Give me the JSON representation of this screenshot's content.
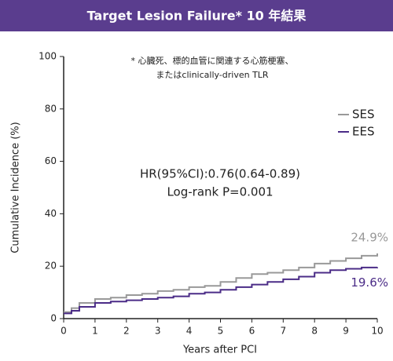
{
  "chart_data": {
    "type": "line",
    "step": true,
    "title": "Target Lesion Failure* 10 年結果",
    "footnote": [
      "* 心臓死、標的血管に関連する心筋梗塞、",
      "またはclinically-driven TLR"
    ],
    "annotations": [
      "HR(95%CI):0.76(0.64-0.89)",
      "Log-rank P=0.001"
    ],
    "x_label": "Years after PCI",
    "y_label": "Cumulative Incidence (%)",
    "x": [
      0,
      0.25,
      0.5,
      1,
      1.5,
      2,
      2.5,
      3,
      3.5,
      4,
      4.5,
      5,
      5.5,
      6,
      6.5,
      7,
      7.5,
      8,
      8.5,
      9,
      9.5,
      10
    ],
    "series": [
      {
        "name": "SES",
        "color": "#999999",
        "values": [
          2.5,
          4,
          6,
          7.5,
          8,
          9,
          9.5,
          10.5,
          11,
          12,
          12.5,
          14,
          15.5,
          17,
          17.5,
          18.5,
          19.5,
          21,
          22,
          23,
          24,
          24.9
        ],
        "value_labels": [
          null,
          null,
          null,
          null,
          null,
          null,
          null,
          null,
          null,
          null,
          null,
          null,
          null,
          null,
          null,
          null,
          null,
          null,
          null,
          null,
          null,
          "24.9%"
        ]
      },
      {
        "name": "EES",
        "color": "#4b2c87",
        "values": [
          2,
          3,
          4.5,
          6,
          6.5,
          7,
          7.5,
          8,
          8.5,
          9.5,
          10,
          11,
          12,
          13,
          14,
          15,
          16,
          17.5,
          18.5,
          19,
          19.5,
          19.6
        ],
        "value_labels": [
          null,
          null,
          null,
          null,
          null,
          null,
          null,
          null,
          null,
          null,
          null,
          null,
          null,
          null,
          null,
          null,
          null,
          null,
          null,
          null,
          null,
          "19.6%"
        ]
      }
    ],
    "xlim": [
      0,
      10
    ],
    "xticks": [
      0,
      1,
      2,
      3,
      4,
      5,
      6,
      7,
      8,
      9,
      10
    ],
    "ylim": [
      0,
      100
    ],
    "yticks": [
      0,
      20,
      40,
      60,
      80,
      100
    ],
    "grid": false,
    "legend": "right",
    "banner_color": "#5a3d8e"
  }
}
